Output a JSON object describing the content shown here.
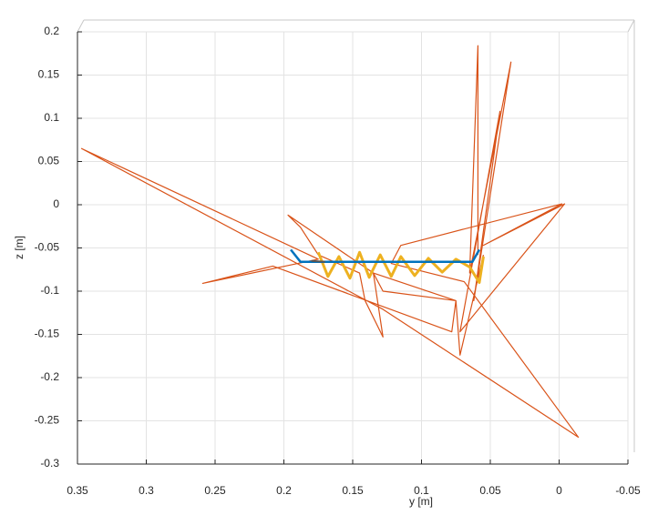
{
  "chart_data": {
    "type": "line",
    "xlabel": "y [m]",
    "ylabel": "z [m]",
    "xlim": [
      0.35,
      -0.05
    ],
    "xticks": [
      0.35,
      0.3,
      0.25,
      0.2,
      0.15,
      0.1,
      0.05,
      0,
      -0.05
    ],
    "ylim": [
      -0.3,
      0.2
    ],
    "yticks": [
      0.2,
      0.15,
      0.1,
      0.05,
      0,
      -0.05,
      -0.1,
      -0.15,
      -0.2,
      -0.25,
      -0.3
    ],
    "grid": true,
    "series": [
      {
        "color": "#d95319",
        "width": 1.2,
        "x": [
          0.059,
          0.059,
          0.065,
          0.035,
          0.062,
          0.043,
          0.072,
          -0.004,
          0.055,
          -0.002,
          0.115,
          0.122,
          0.069,
          -0.014,
          0.128,
          0.347,
          0.175,
          0.259,
          0.208,
          0.078,
          0.075,
          0.128,
          0.135,
          0.197,
          0.188,
          0.175,
          0.145,
          0.141,
          0.128,
          0.135,
          0.075,
          0.072,
          0.055
        ],
        "y": [
          -0.058,
          0.184,
          -0.079,
          0.165,
          -0.111,
          0.108,
          -0.147,
          0.001,
          -0.047,
          0.001,
          -0.047,
          -0.068,
          -0.089,
          -0.269,
          -0.121,
          0.065,
          -0.063,
          -0.091,
          -0.071,
          -0.147,
          -0.111,
          -0.1,
          -0.079,
          -0.012,
          -0.026,
          -0.058,
          -0.079,
          -0.111,
          -0.153,
          -0.079,
          -0.111,
          -0.174,
          -0.058
        ]
      },
      {
        "color": "#edb120",
        "width": 3,
        "x": [
          0.175,
          0.168,
          0.16,
          0.152,
          0.145,
          0.138,
          0.13,
          0.122,
          0.115,
          0.105,
          0.095,
          0.085,
          0.075,
          0.065,
          0.058,
          0.055
        ],
        "y": [
          -0.055,
          -0.083,
          -0.06,
          -0.085,
          -0.055,
          -0.084,
          -0.058,
          -0.083,
          -0.06,
          -0.082,
          -0.062,
          -0.078,
          -0.063,
          -0.072,
          -0.09,
          -0.06
        ]
      },
      {
        "color": "#0072bd",
        "width": 2.5,
        "x": [
          0.195,
          0.188,
          0.063,
          0.058
        ],
        "y": [
          -0.052,
          -0.066,
          -0.066,
          -0.052
        ]
      },
      {
        "color": "#555555",
        "width": 2,
        "x": [
          0.18,
          0.17
        ],
        "y": [
          -0.065,
          -0.066
        ]
      }
    ]
  }
}
